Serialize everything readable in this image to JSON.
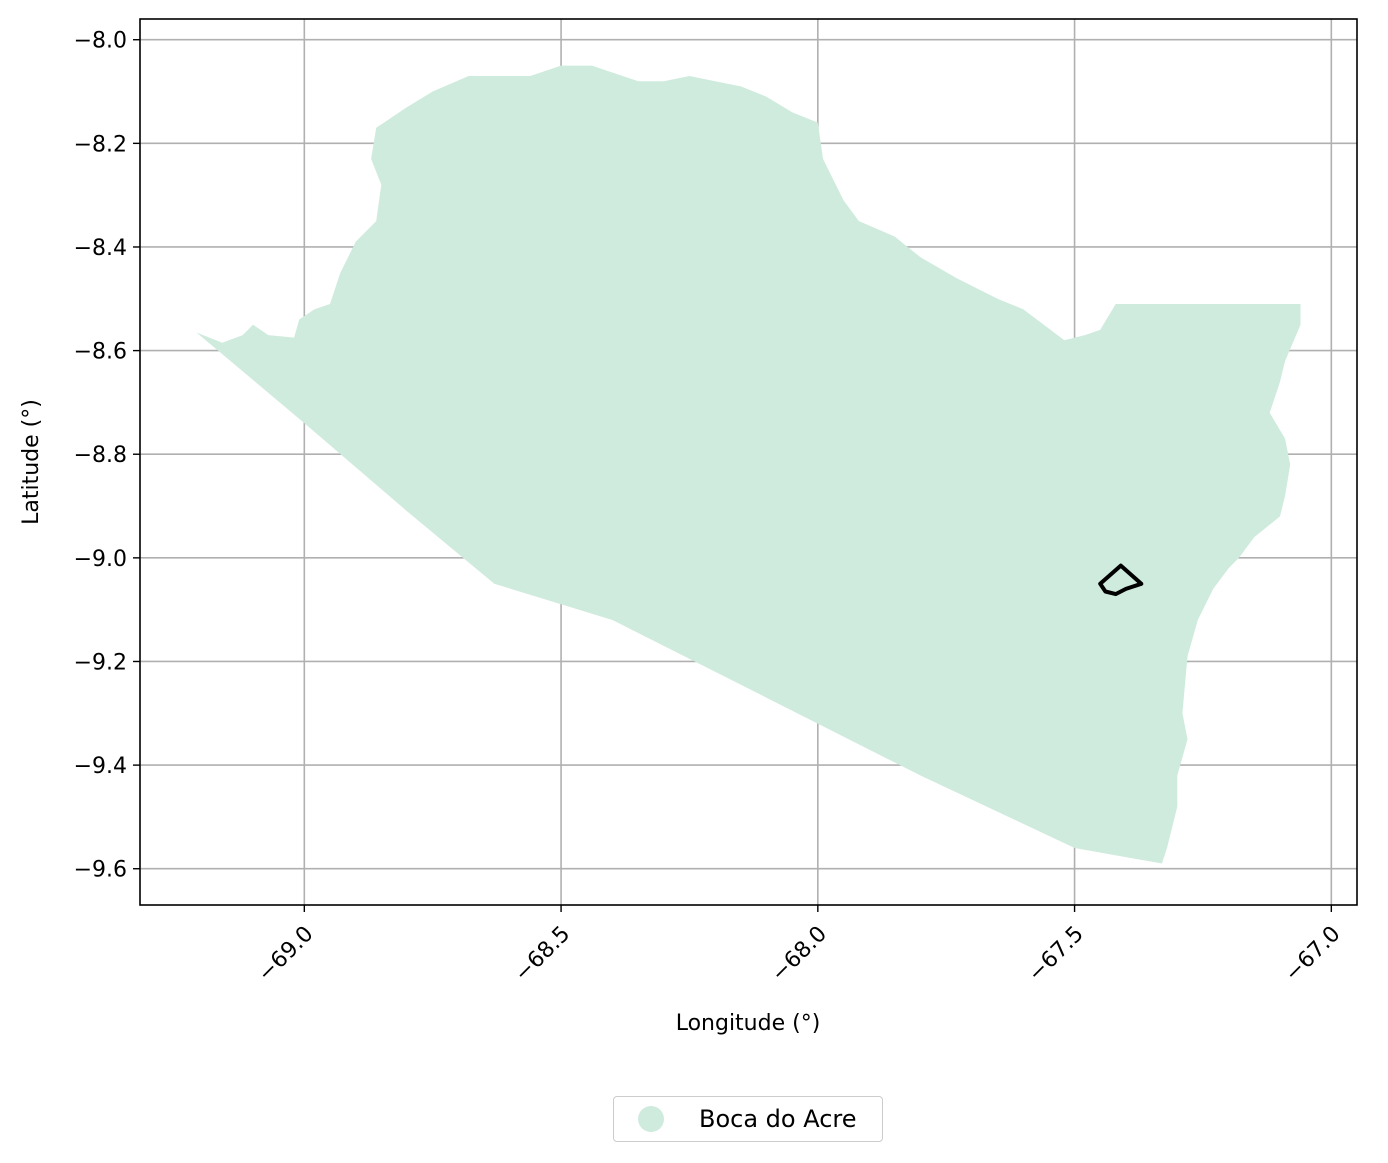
{
  "chart_data": {
    "type": "map",
    "title": "",
    "xlabel": "Longitude (°)",
    "ylabel": "Latitude (°)",
    "xlim": [
      -69.32,
      -66.95
    ],
    "ylim": [
      -9.67,
      -7.96
    ],
    "xticks": [
      -69.0,
      -68.5,
      -68.0,
      -67.5,
      -67.0
    ],
    "xtick_labels": [
      "−69.0",
      "−68.5",
      "−68.0",
      "−67.5",
      "−67.0"
    ],
    "yticks": [
      -8.0,
      -8.2,
      -8.4,
      -8.6,
      -8.8,
      -9.0,
      -9.2,
      -9.4,
      -9.6
    ],
    "ytick_labels": [
      "−8.0",
      "−8.2",
      "−8.4",
      "−8.6",
      "−8.8",
      "−9.0",
      "−9.2",
      "−9.4",
      "−9.6"
    ],
    "grid": true,
    "region_color": "#cfebdd",
    "outline_color": "#000000",
    "legend": {
      "placement": "bottom-center",
      "entries": [
        {
          "label": "Boca do Acre",
          "color": "#cfebdd"
        }
      ]
    },
    "region": {
      "name": "Boca do Acre",
      "polygon": [
        [
          -69.21,
          -8.565
        ],
        [
          -69.16,
          -8.585
        ],
        [
          -69.12,
          -8.57
        ],
        [
          -69.1,
          -8.55
        ],
        [
          -69.07,
          -8.57
        ],
        [
          -69.02,
          -8.575
        ],
        [
          -69.01,
          -8.54
        ],
        [
          -68.98,
          -8.52
        ],
        [
          -68.95,
          -8.51
        ],
        [
          -68.93,
          -8.45
        ],
        [
          -68.9,
          -8.39
        ],
        [
          -68.86,
          -8.35
        ],
        [
          -68.85,
          -8.28
        ],
        [
          -68.87,
          -8.23
        ],
        [
          -68.86,
          -8.17
        ],
        [
          -68.8,
          -8.13
        ],
        [
          -68.75,
          -8.1
        ],
        [
          -68.68,
          -8.07
        ],
        [
          -68.62,
          -8.07
        ],
        [
          -68.56,
          -8.07
        ],
        [
          -68.5,
          -8.05
        ],
        [
          -68.44,
          -8.05
        ],
        [
          -68.35,
          -8.08
        ],
        [
          -68.3,
          -8.08
        ],
        [
          -68.25,
          -8.07
        ],
        [
          -68.2,
          -8.08
        ],
        [
          -68.15,
          -8.09
        ],
        [
          -68.1,
          -8.11
        ],
        [
          -68.05,
          -8.14
        ],
        [
          -68.0,
          -8.16
        ],
        [
          -67.99,
          -8.23
        ],
        [
          -67.95,
          -8.31
        ],
        [
          -67.92,
          -8.35
        ],
        [
          -67.85,
          -8.38
        ],
        [
          -67.8,
          -8.42
        ],
        [
          -67.73,
          -8.46
        ],
        [
          -67.65,
          -8.5
        ],
        [
          -67.6,
          -8.52
        ],
        [
          -67.56,
          -8.55
        ],
        [
          -67.52,
          -8.58
        ],
        [
          -67.48,
          -8.57
        ],
        [
          -67.45,
          -8.56
        ],
        [
          -67.42,
          -8.51
        ],
        [
          -67.06,
          -8.51
        ],
        [
          -67.06,
          -8.55
        ],
        [
          -67.09,
          -8.62
        ],
        [
          -67.1,
          -8.66
        ],
        [
          -67.12,
          -8.72
        ],
        [
          -67.09,
          -8.77
        ],
        [
          -67.08,
          -8.82
        ],
        [
          -67.09,
          -8.88
        ],
        [
          -67.1,
          -8.92
        ],
        [
          -67.15,
          -8.96
        ],
        [
          -67.18,
          -9.0
        ],
        [
          -67.2,
          -9.02
        ],
        [
          -67.23,
          -9.06
        ],
        [
          -67.26,
          -9.12
        ],
        [
          -67.28,
          -9.19
        ],
        [
          -67.29,
          -9.3
        ],
        [
          -67.28,
          -9.35
        ],
        [
          -67.3,
          -9.42
        ],
        [
          -67.3,
          -9.48
        ],
        [
          -67.32,
          -9.56
        ],
        [
          -67.33,
          -9.59
        ],
        [
          -67.5,
          -9.56
        ],
        [
          -67.8,
          -9.42
        ],
        [
          -68.1,
          -9.27
        ],
        [
          -68.4,
          -9.12
        ],
        [
          -68.63,
          -9.05
        ],
        [
          -68.8,
          -8.91
        ],
        [
          -69.0,
          -8.74
        ]
      ]
    },
    "feature": {
      "polygon": [
        [
          -67.41,
          -9.015
        ],
        [
          -67.45,
          -9.05
        ],
        [
          -67.44,
          -9.065
        ],
        [
          -67.42,
          -9.07
        ],
        [
          -67.4,
          -9.06
        ],
        [
          -67.37,
          -9.05
        ],
        [
          -67.41,
          -9.015
        ]
      ]
    }
  }
}
